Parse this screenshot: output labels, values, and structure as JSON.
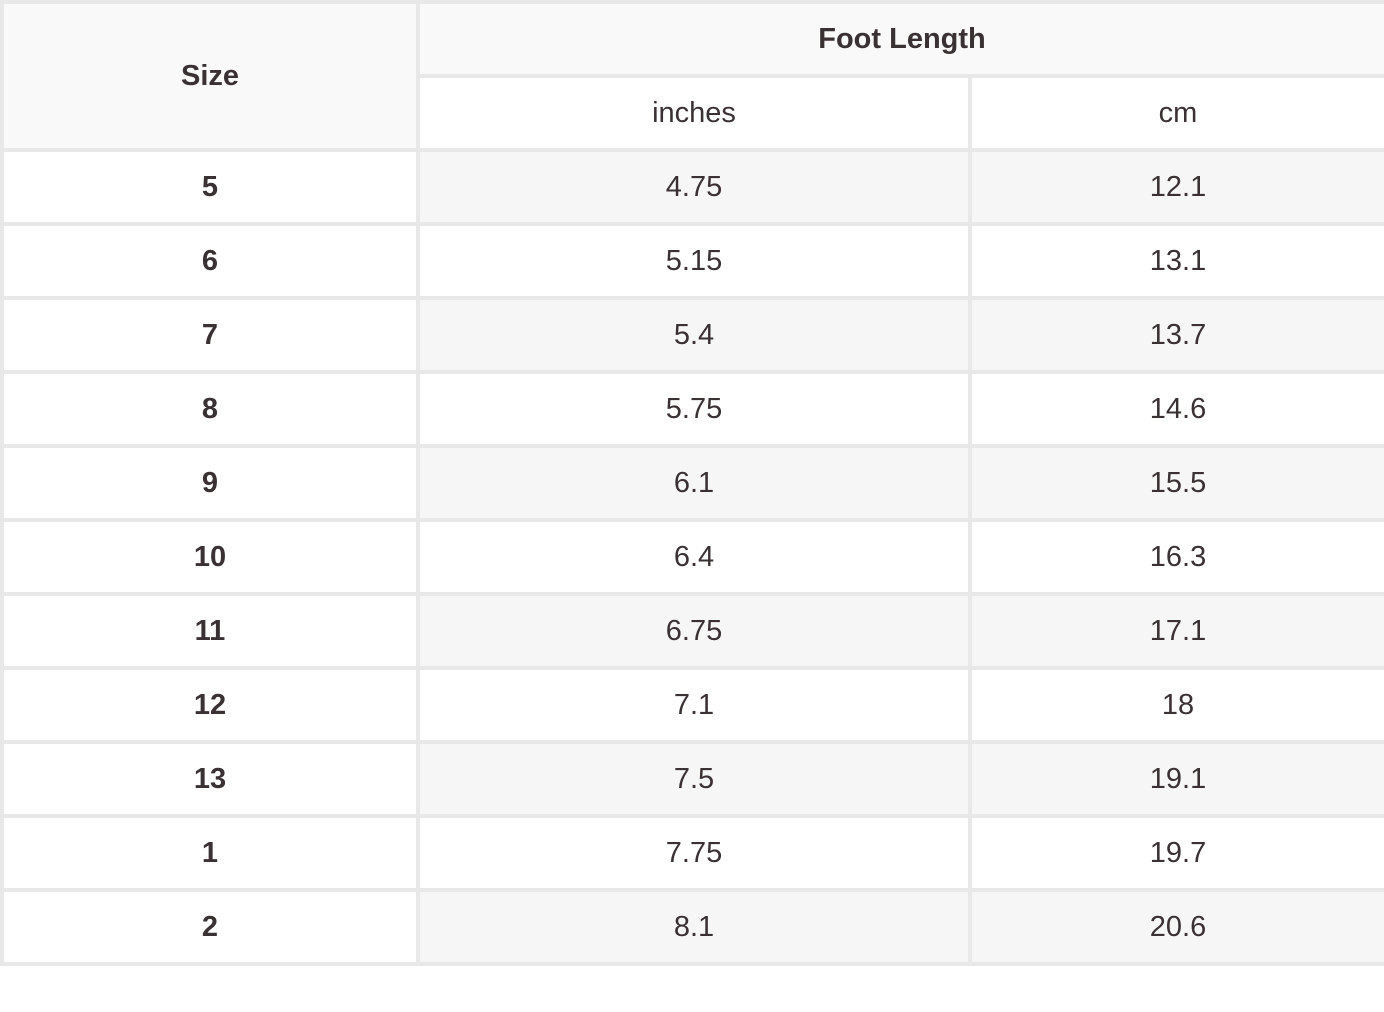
{
  "headers": {
    "size": "Size",
    "foot_length": "Foot Length",
    "inches": "inches",
    "cm": "cm"
  },
  "rows": [
    {
      "size": "5",
      "inches": "4.75",
      "cm": "12.1"
    },
    {
      "size": "6",
      "inches": "5.15",
      "cm": "13.1"
    },
    {
      "size": "7",
      "inches": "5.4",
      "cm": "13.7"
    },
    {
      "size": "8",
      "inches": "5.75",
      "cm": "14.6"
    },
    {
      "size": "9",
      "inches": "6.1",
      "cm": "15.5"
    },
    {
      "size": "10",
      "inches": "6.4",
      "cm": "16.3"
    },
    {
      "size": "11",
      "inches": "6.75",
      "cm": "17.1"
    },
    {
      "size": "12",
      "inches": "7.1",
      "cm": "18"
    },
    {
      "size": "13",
      "inches": "7.5",
      "cm": "19.1"
    },
    {
      "size": "1",
      "inches": "7.75",
      "cm": "19.7"
    },
    {
      "size": "2",
      "inches": "8.1",
      "cm": "20.6"
    }
  ]
}
